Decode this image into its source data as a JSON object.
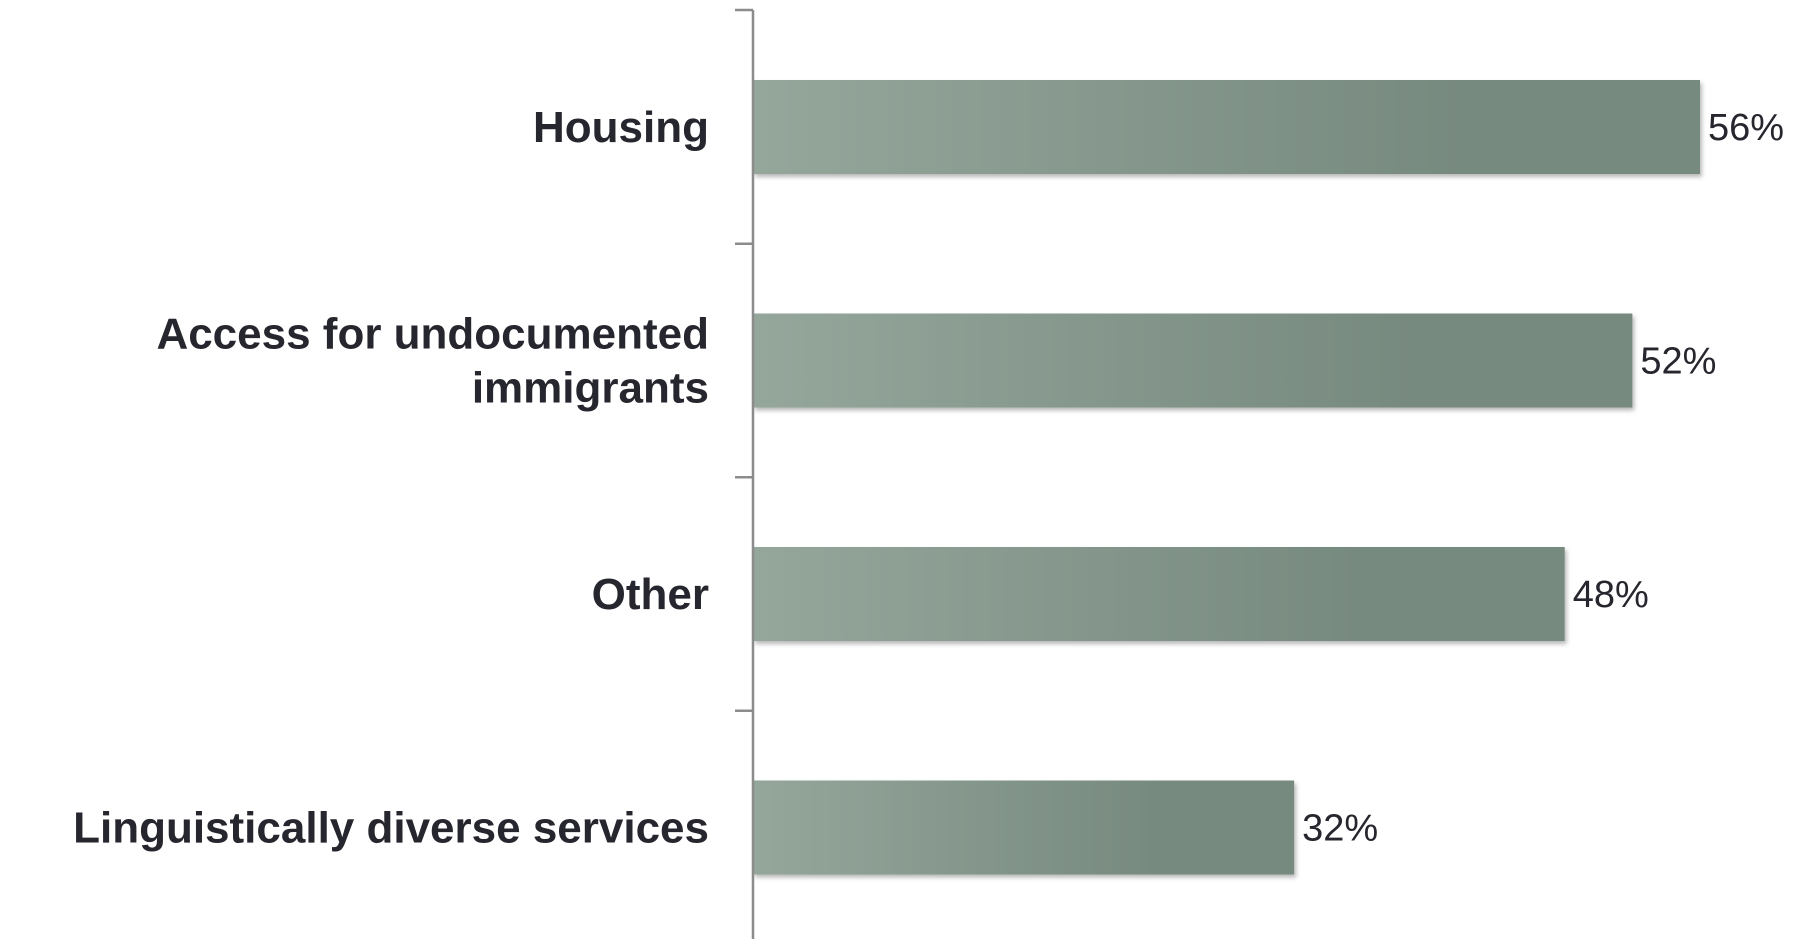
{
  "chart_data": {
    "type": "bar",
    "orientation": "horizontal",
    "categories": [
      [
        "Housing"
      ],
      [
        "Access for undocumented",
        "immigrants"
      ],
      [
        "Other"
      ],
      [
        "Linguistically diverse services"
      ]
    ],
    "values": [
      56,
      52,
      48,
      32
    ],
    "value_labels": [
      "56%",
      "52%",
      "48%",
      "32%"
    ],
    "unit": "%",
    "xlim": [
      0,
      56
    ],
    "grid": false,
    "legend": "none",
    "colors": {
      "bar_light": "#95a69b",
      "bar_dark": "#778a7f",
      "axis": "#8c8c8c",
      "text": "#26262e"
    }
  }
}
